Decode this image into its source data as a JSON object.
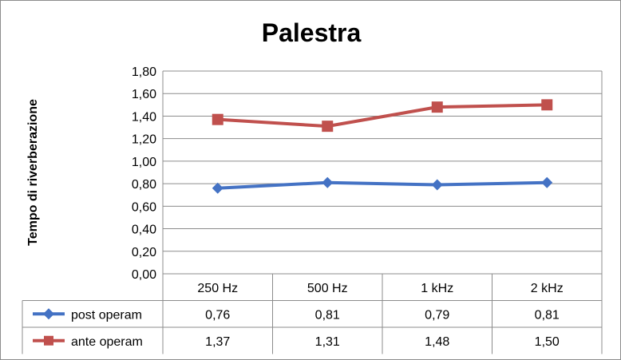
{
  "chart_data": {
    "type": "line",
    "title": "Palestra",
    "xlabel": "",
    "ylabel": "Tempo di riverberazione",
    "categories": [
      "250 Hz",
      "500 Hz",
      "1 kHz",
      "2 kHz"
    ],
    "ylim": [
      0,
      1.8
    ],
    "yticks": [
      "0,00",
      "0,20",
      "0,40",
      "0,60",
      "0,80",
      "1,00",
      "1,20",
      "1,40",
      "1,60",
      "1,80"
    ],
    "grid": true,
    "legend": "data-table",
    "series": [
      {
        "name": "post operam",
        "values": [
          0.76,
          0.81,
          0.79,
          0.81
        ],
        "labels": [
          "0,76",
          "0,81",
          "0,79",
          "0,81"
        ],
        "color": "#4472C4",
        "marker": "diamond"
      },
      {
        "name": "ante operam",
        "values": [
          1.37,
          1.31,
          1.48,
          1.5
        ],
        "labels": [
          "1,37",
          "1,31",
          "1,48",
          "1,50"
        ],
        "color": "#C0504D",
        "marker": "square"
      }
    ]
  }
}
